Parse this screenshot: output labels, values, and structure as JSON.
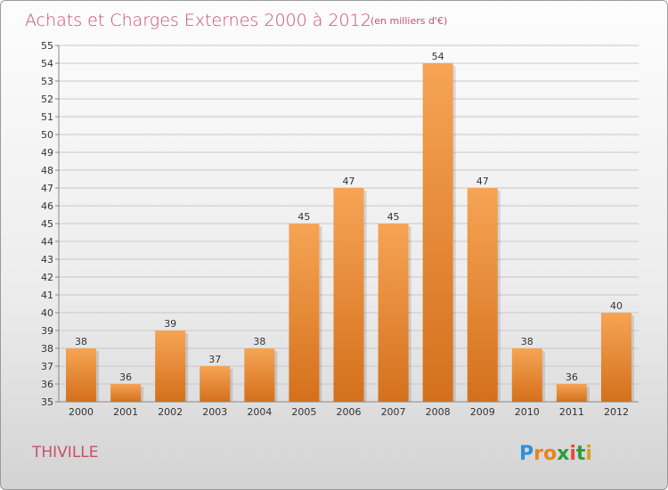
{
  "chart_data": {
    "type": "bar",
    "title": "Achats et Charges Externes 2000 à 2012",
    "subtitle": "(en milliers d'€)",
    "categories": [
      "2000",
      "2001",
      "2002",
      "2003",
      "2004",
      "2005",
      "2006",
      "2007",
      "2008",
      "2009",
      "2010",
      "2011",
      "2012"
    ],
    "values": [
      38,
      36,
      39,
      37,
      38,
      45,
      47,
      45,
      54,
      47,
      38,
      36,
      40
    ],
    "ylim": [
      35,
      55
    ],
    "yticks": [
      35,
      36,
      37,
      38,
      39,
      40,
      41,
      42,
      43,
      44,
      45,
      46,
      47,
      48,
      49,
      50,
      51,
      52,
      53,
      54,
      55
    ],
    "grid": true,
    "bar_color": "#f0882e",
    "xlabel": "",
    "ylabel": ""
  },
  "footer": {
    "city": "THIVILLE",
    "logo": {
      "letters": [
        "P",
        "r",
        "o",
        "x",
        "i",
        "t",
        "i"
      ],
      "colors": [
        "#2f8fd8",
        "#e8831f",
        "#e8831f",
        "#2e9c3c",
        "#e84a2f",
        "#2e9c3c",
        "#d7a21e"
      ]
    }
  }
}
